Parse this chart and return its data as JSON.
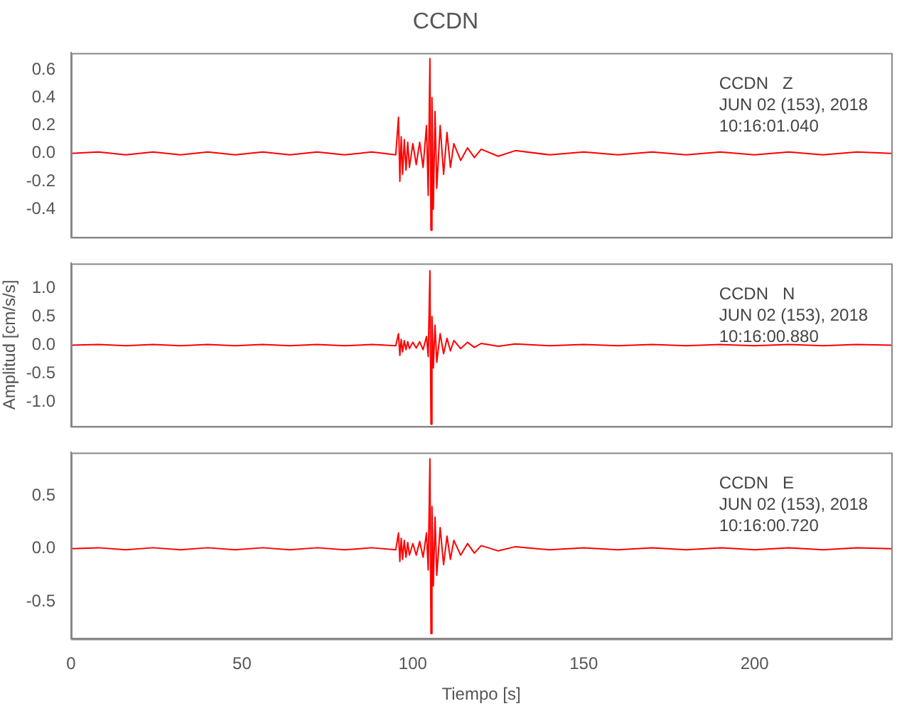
{
  "chart_data": [
    {
      "type": "line",
      "title": "CCDN",
      "annotations": [
        "CCDN   Z",
        "JUN 02 (153), 2018",
        "10:16:01.040"
      ],
      "tick_labels": "y",
      "grid": false,
      "legend": false,
      "xlim": [
        0,
        240
      ],
      "xticks": [
        0,
        50,
        100,
        150,
        200
      ],
      "ylim": [
        -0.6,
        0.72
      ],
      "yticks": [
        -0.4,
        -0.2,
        {
          "value": 0,
          "label": "0.0"
        },
        0.2,
        0.4,
        0.6
      ],
      "x": [
        0,
        8,
        16,
        24,
        32,
        40,
        48,
        56,
        64,
        72,
        80,
        88,
        95,
        95.8,
        96.2,
        96.6,
        97,
        97.5,
        98,
        98.5,
        99,
        100,
        101,
        102,
        103,
        104,
        104.5,
        105,
        105.3,
        105.6,
        106,
        106.5,
        107,
        108,
        109,
        110,
        111,
        112,
        114,
        116,
        118,
        120,
        125,
        130,
        140,
        150,
        160,
        170,
        180,
        190,
        200,
        210,
        220,
        230,
        240
      ],
      "series": [
        {
          "color": "#ff0000",
          "values": [
            0,
            0.01,
            -0.01,
            0.01,
            -0.01,
            0.01,
            -0.01,
            0.01,
            -0.01,
            0.01,
            -0.01,
            0.01,
            -0.01,
            0.26,
            -0.2,
            0.12,
            -0.15,
            0.1,
            -0.12,
            0.08,
            -0.1,
            0.07,
            -0.08,
            0.08,
            -0.1,
            0.2,
            -0.3,
            0.68,
            -0.55,
            0.4,
            -0.4,
            0.3,
            -0.25,
            0.2,
            -0.15,
            0.15,
            -0.1,
            0.07,
            -0.05,
            0.04,
            -0.03,
            0.03,
            -0.02,
            0.02,
            -0.01,
            0.01,
            -0.01,
            0.01,
            -0.01,
            0.01,
            -0.01,
            0.01,
            -0.01,
            0.01,
            0
          ]
        }
      ]
    },
    {
      "type": "line",
      "ylabel": "Amplitud [cm/s/s]",
      "annotations": [
        "CCDN   N",
        "JUN 02 (153), 2018",
        "10:16:00.880"
      ],
      "tick_labels": "y",
      "grid": false,
      "legend": false,
      "xlim": [
        0,
        240
      ],
      "xticks": [
        0,
        50,
        100,
        150,
        200
      ],
      "ylim": [
        -1.42,
        1.43
      ],
      "yticks": [
        {
          "value": -1,
          "label": "-1.0"
        },
        -0.5,
        {
          "value": 0,
          "label": "0.0"
        },
        0.5,
        {
          "value": 1,
          "label": "1.0"
        }
      ],
      "x": [
        0,
        8,
        16,
        24,
        32,
        40,
        48,
        56,
        64,
        72,
        80,
        88,
        95,
        95.8,
        96.2,
        96.6,
        97,
        97.5,
        98,
        98.5,
        99,
        100,
        101,
        102,
        103,
        104,
        104.5,
        105,
        105.3,
        105.6,
        106,
        106.5,
        107,
        108,
        109,
        110,
        111,
        112,
        114,
        116,
        118,
        120,
        125,
        130,
        140,
        150,
        160,
        170,
        180,
        190,
        200,
        210,
        220,
        230,
        240
      ],
      "series": [
        {
          "color": "#ff0000",
          "values": [
            0,
            0.01,
            -0.01,
            0.01,
            -0.01,
            0.01,
            -0.01,
            0.01,
            -0.01,
            0.01,
            -0.01,
            0.01,
            -0.01,
            0.2,
            -0.18,
            0.1,
            -0.12,
            0.08,
            -0.08,
            0.06,
            -0.06,
            0.05,
            -0.05,
            0.06,
            -0.08,
            0.15,
            -0.2,
            1.3,
            -1.38,
            0.5,
            -0.4,
            0.35,
            -0.3,
            0.2,
            -0.15,
            0.12,
            -0.1,
            0.08,
            -0.06,
            0.05,
            -0.04,
            0.03,
            -0.02,
            0.02,
            -0.01,
            0.01,
            -0.01,
            0.01,
            -0.01,
            0.01,
            -0.01,
            0.01,
            -0.01,
            0.01,
            0
          ]
        }
      ]
    },
    {
      "type": "line",
      "xlabel": "Tiempo [s]",
      "annotations": [
        "CCDN   E",
        "JUN 02 (153), 2018",
        "10:16:00.720"
      ],
      "grid": false,
      "legend": false,
      "xlim": [
        0,
        240
      ],
      "xticks": [
        0,
        50,
        100,
        150,
        200
      ],
      "ylim": [
        -0.85,
        0.91
      ],
      "yticks": [
        -0.5,
        {
          "value": 0,
          "label": "0.0"
        },
        0.5
      ],
      "x": [
        0,
        8,
        16,
        24,
        32,
        40,
        48,
        56,
        64,
        72,
        80,
        88,
        95,
        95.8,
        96.2,
        96.6,
        97,
        97.5,
        98,
        98.5,
        99,
        100,
        101,
        102,
        103,
        104,
        104.5,
        105,
        105.3,
        105.6,
        106,
        106.5,
        107,
        108,
        109,
        110,
        111,
        112,
        114,
        116,
        118,
        120,
        125,
        130,
        140,
        150,
        160,
        170,
        180,
        190,
        200,
        210,
        220,
        230,
        240
      ],
      "series": [
        {
          "color": "#ff0000",
          "values": [
            0,
            0.01,
            -0.01,
            0.01,
            -0.01,
            0.01,
            -0.01,
            0.01,
            -0.01,
            0.01,
            -0.01,
            0.01,
            -0.01,
            0.15,
            -0.12,
            0.1,
            -0.1,
            0.08,
            -0.08,
            0.06,
            -0.06,
            0.05,
            -0.06,
            0.07,
            -0.08,
            0.15,
            -0.2,
            0.85,
            -0.8,
            0.4,
            -0.35,
            0.3,
            -0.25,
            0.2,
            -0.15,
            0.12,
            -0.1,
            0.08,
            -0.06,
            0.05,
            -0.04,
            0.03,
            -0.02,
            0.02,
            -0.01,
            0.01,
            -0.01,
            0.01,
            -0.01,
            0.01,
            -0.01,
            0.01,
            -0.01,
            0.01,
            0
          ]
        }
      ]
    }
  ]
}
